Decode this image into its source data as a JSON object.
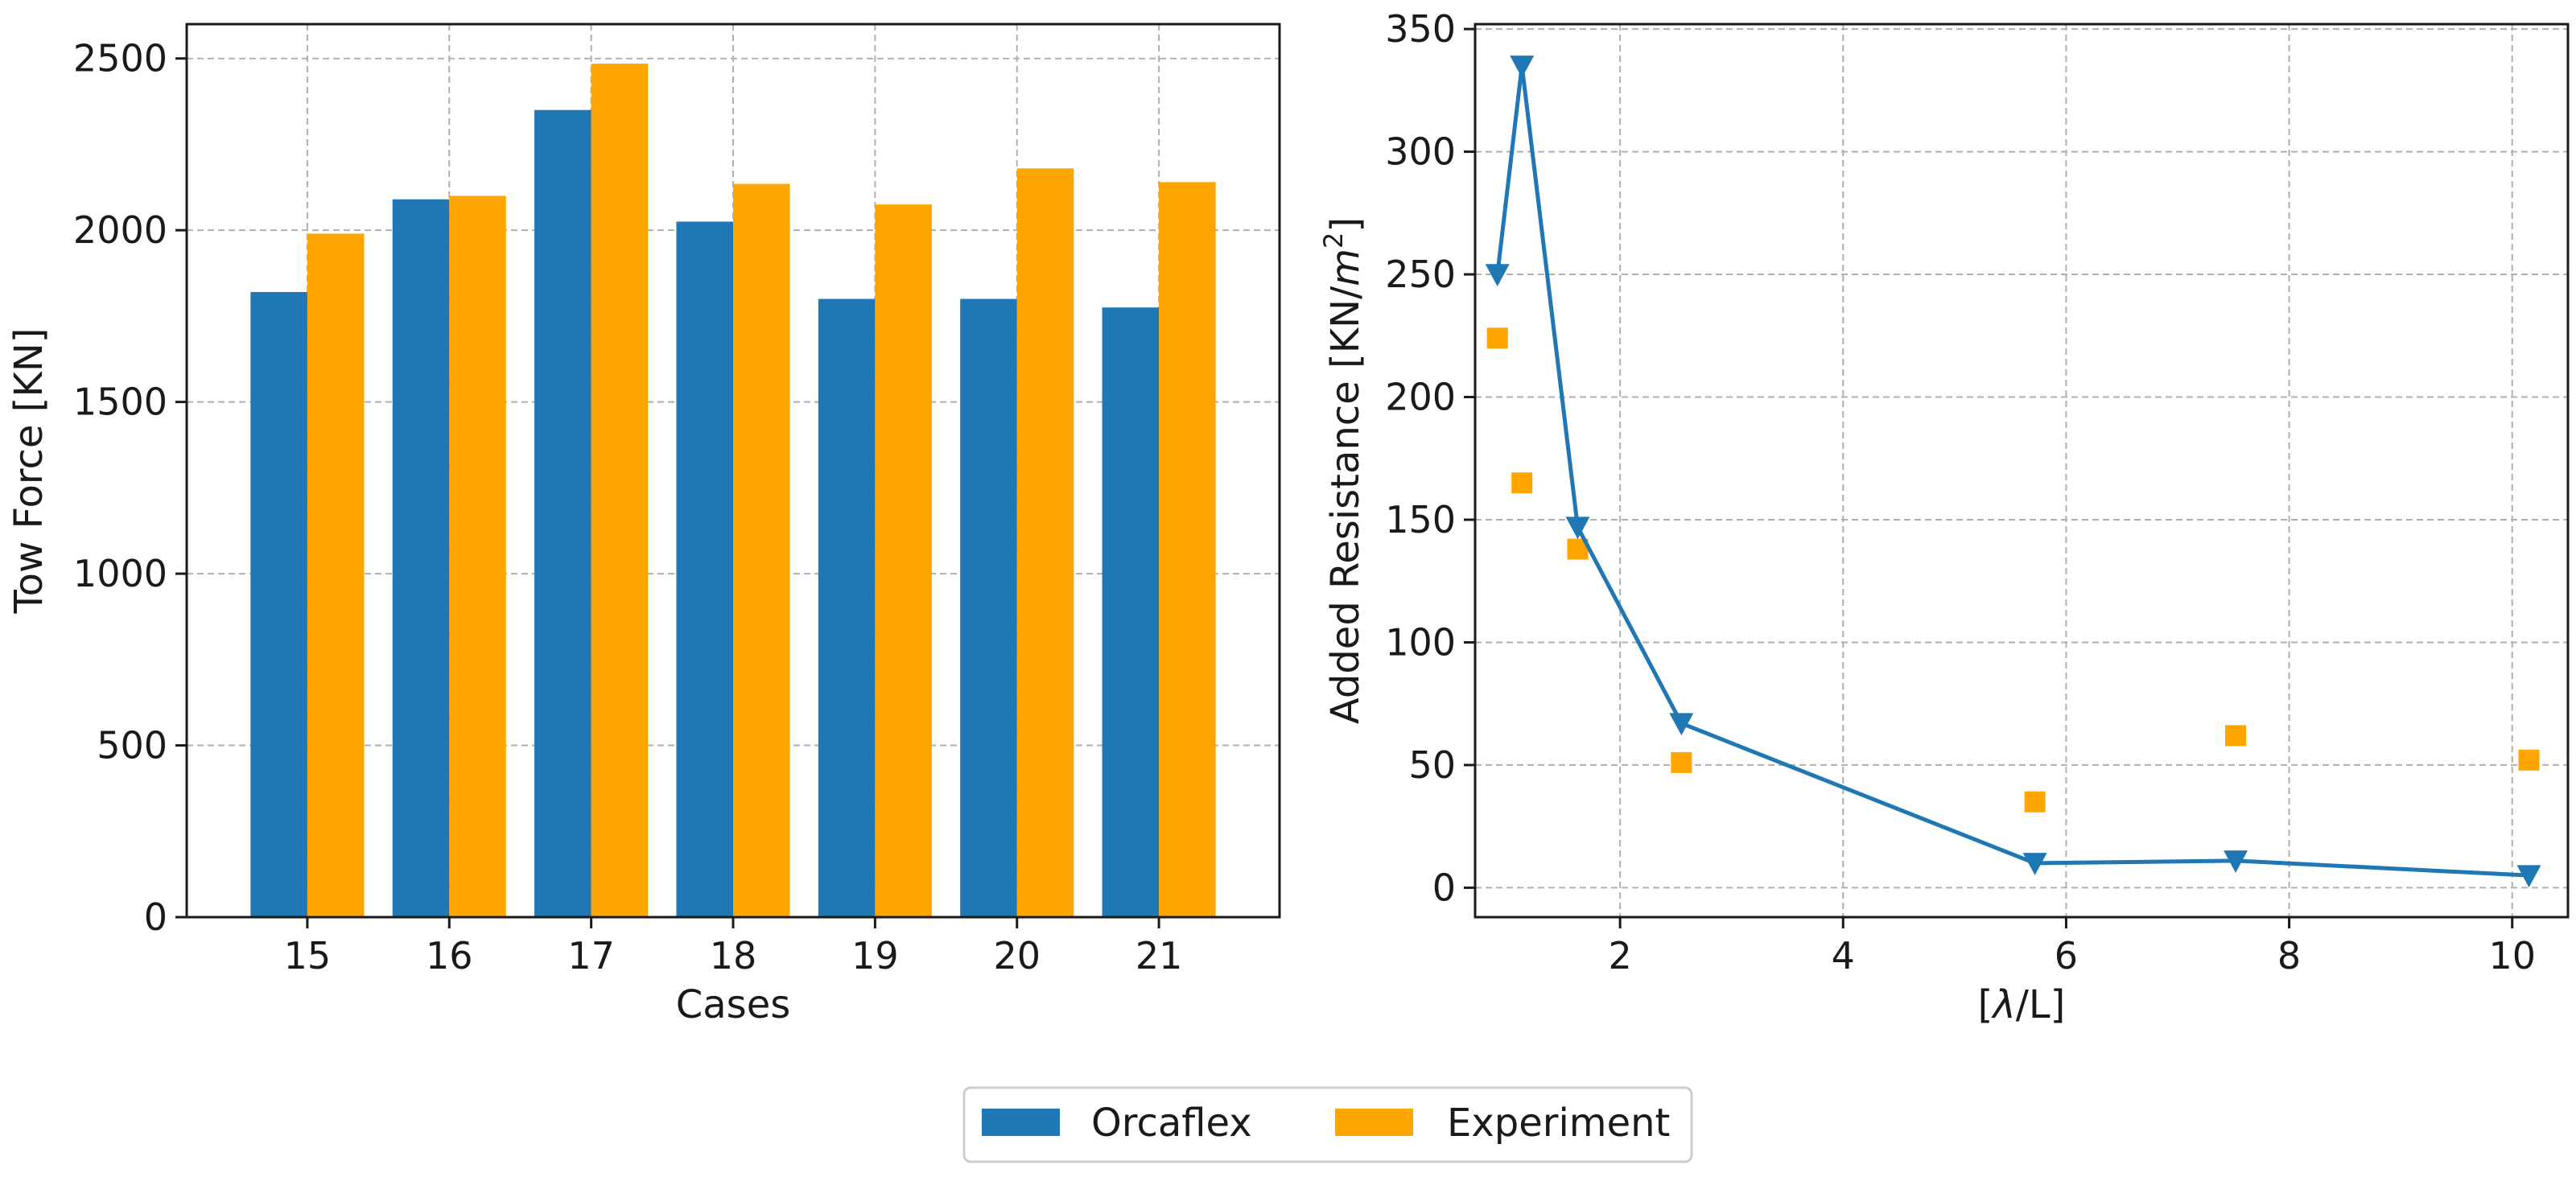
{
  "chart_data": [
    {
      "type": "bar",
      "xlabel": "Cases",
      "ylabel": "Tow Force [KN]",
      "categories": [
        "15",
        "16",
        "17",
        "18",
        "19",
        "20",
        "21"
      ],
      "ylim": [
        0,
        2600
      ],
      "yticks": [
        0,
        500,
        1000,
        1500,
        2000,
        2500
      ],
      "yticklabels": [
        "0",
        "500",
        "1000",
        "1500",
        "2000",
        "2500"
      ],
      "grid": true,
      "series": [
        {
          "name": "Orcaflex",
          "values": [
            1820,
            2090,
            2350,
            2025,
            1800,
            1800,
            1775
          ]
        },
        {
          "name": "Experiment",
          "values": [
            1990,
            2100,
            2485,
            2135,
            2075,
            2180,
            2140
          ]
        }
      ]
    },
    {
      "type": "line+scatter",
      "xlabel_parts": [
        "[",
        "λ",
        "/L]"
      ],
      "ylabel_parts": [
        "Added Resistance [KN/",
        "m",
        "2",
        "]"
      ],
      "xlim": [
        0.7,
        10.5
      ],
      "ylim": [
        -12,
        352
      ],
      "xticks": [
        2,
        4,
        6,
        8,
        10
      ],
      "xticklabels": [
        "2",
        "4",
        "6",
        "8",
        "10"
      ],
      "yticks": [
        0,
        50,
        100,
        150,
        200,
        250,
        300,
        350
      ],
      "yticklabels": [
        "0",
        "50",
        "100",
        "150",
        "200",
        "250",
        "300",
        "350"
      ],
      "grid": true,
      "series": [
        {
          "name": "Orcaflex",
          "kind": "line",
          "marker": "triangle-down",
          "x": [
            0.9,
            1.12,
            1.62,
            2.55,
            5.72,
            7.52,
            10.15
          ],
          "y": [
            250,
            335,
            147,
            67,
            10,
            11,
            5
          ]
        },
        {
          "name": "Experiment",
          "kind": "scatter",
          "marker": "square",
          "x": [
            0.9,
            1.12,
            1.62,
            2.55,
            5.72,
            7.52,
            10.15
          ],
          "y": [
            224,
            165,
            138,
            51,
            35,
            62,
            52
          ]
        }
      ]
    }
  ],
  "legend": {
    "placement": "bottom-center",
    "items": [
      {
        "label": "Orcaflex",
        "color": "#1f77b4"
      },
      {
        "label": "Experiment",
        "color": "#ffa500"
      }
    ]
  },
  "colors": {
    "orcaflex": "#1f77b4",
    "experiment": "#ffa500"
  }
}
